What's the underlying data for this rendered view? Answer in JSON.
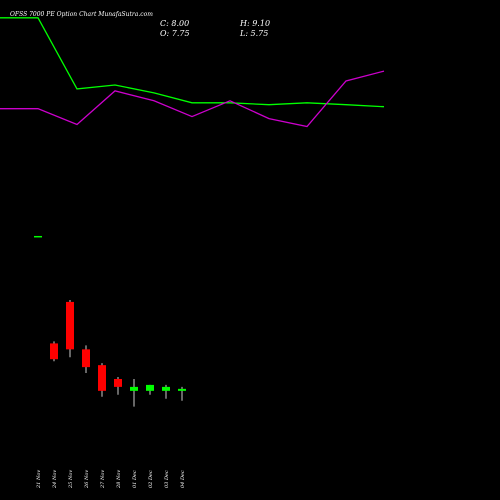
{
  "title": "OFSS 7000  PE Option  Chart MunafaSutra.com",
  "ohlc": {
    "c": "C: 8.00",
    "h": "H: 9.10",
    "o": "O: 7.75",
    "l": "L: 5.75"
  },
  "chart_data": {
    "type": "candlestick",
    "x": [
      "21 Nov",
      "24 Nov",
      "25 Nov",
      "26 Nov",
      "27 Nov",
      "28 Nov",
      "01 Dec",
      "02 Dec",
      "03 Dec",
      "04 Dec"
    ],
    "colors": {
      "up": "#00ff00",
      "down": "#ff0000",
      "green_line": "#00ff00",
      "purple_line": "#cc00cc",
      "wick": "#ffffff",
      "background": "#000000"
    },
    "candles": [
      {
        "o": null,
        "h": null,
        "l": null,
        "c": null,
        "dir": "flat"
      },
      {
        "o": 59,
        "h": 60,
        "l": 50,
        "c": 51,
        "dir": "down"
      },
      {
        "o": 80,
        "h": 81,
        "l": 52,
        "c": 56,
        "dir": "down"
      },
      {
        "o": 56,
        "h": 58,
        "l": 44,
        "c": 47,
        "dir": "down"
      },
      {
        "o": 48,
        "h": 49,
        "l": 32,
        "c": 35,
        "dir": "down"
      },
      {
        "o": 41,
        "h": 42,
        "l": 33,
        "c": 37,
        "dir": "down"
      },
      {
        "o": 35,
        "h": 41,
        "l": 27,
        "c": 37,
        "dir": "up"
      },
      {
        "o": 35,
        "h": 38,
        "l": 33,
        "c": 38,
        "dir": "up"
      },
      {
        "o": 37,
        "h": 38,
        "l": 31,
        "c": 35,
        "dir": "up"
      },
      {
        "o": 35,
        "h": 37,
        "l": 30,
        "c": 36,
        "dir": "up"
      }
    ],
    "first_marker": 113,
    "price_range": [
      0,
      167
    ],
    "line_green": [
      158,
      158,
      122,
      124,
      120,
      115,
      115,
      114,
      115,
      114,
      113
    ],
    "line_purple": [
      112,
      112,
      104,
      121,
      116,
      108,
      116,
      107,
      103,
      126,
      131
    ],
    "line_range": [
      0,
      167
    ],
    "grid": false,
    "legend": "none"
  }
}
